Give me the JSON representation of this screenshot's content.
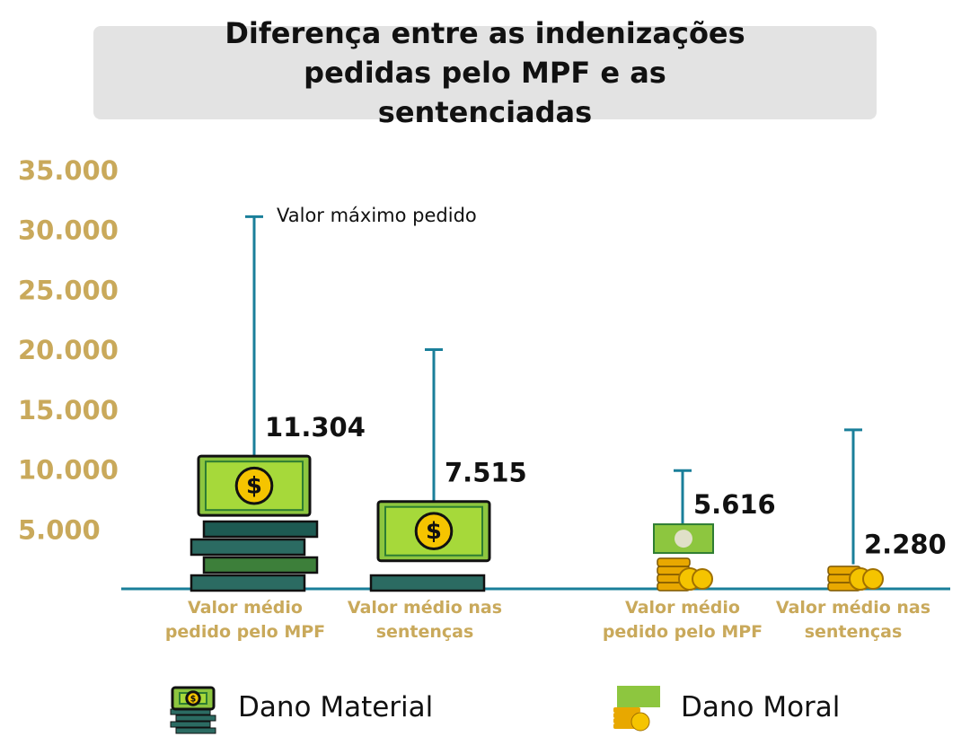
{
  "chart_data": {
    "type": "bar",
    "title": "Diferença entre as indenizações pedidas pelo MPF e as sentenciadas",
    "annotation": "Valor máximo pedido",
    "categories": [
      "Valor médio pedido pelo MPF",
      "Valor médio nas sentenças"
    ],
    "series": [
      {
        "name": "Dano Material",
        "color": "#8dc63f",
        "values": [
          11304,
          7515
        ],
        "value_labels": [
          "11.304",
          "7.515"
        ],
        "max": [
          31300,
          20200
        ]
      },
      {
        "name": "Dano Moral",
        "color": "#f5b800",
        "values": [
          5616,
          2280
        ],
        "value_labels": [
          "5.616",
          "2.280"
        ],
        "max": [
          10100,
          13500
        ]
      }
    ],
    "ylim": [
      0,
      35000
    ],
    "yticks": [
      {
        "value": 5000,
        "label": "5.000"
      },
      {
        "value": 10000,
        "label": "10.000"
      },
      {
        "value": 15000,
        "label": "15.000"
      },
      {
        "value": 20000,
        "label": "20.000"
      },
      {
        "value": 25000,
        "label": "25.000"
      },
      {
        "value": 30000,
        "label": "30.000"
      },
      {
        "value": 35000,
        "label": "35.000"
      }
    ],
    "axis_color": "#1a7f9a",
    "tick_color": "#c9a95b"
  }
}
